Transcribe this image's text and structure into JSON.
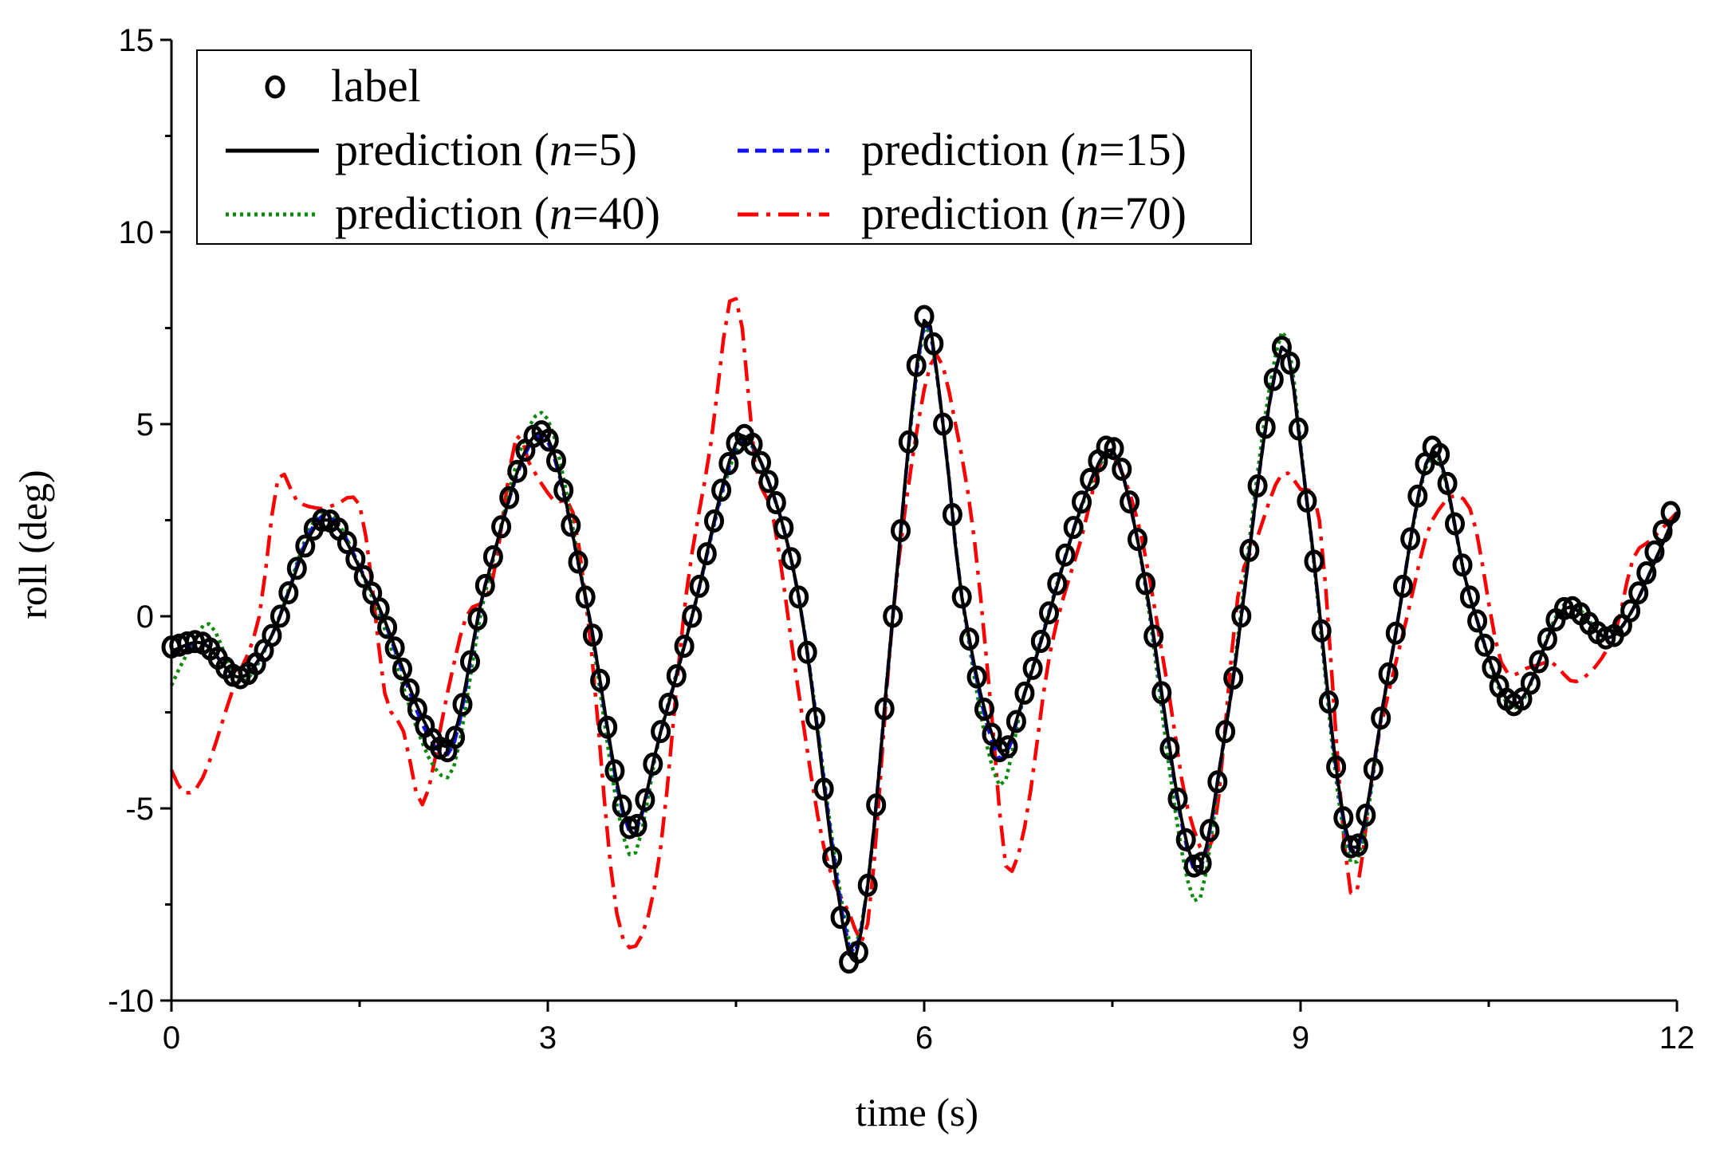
{
  "chart_data": {
    "type": "line",
    "title": "",
    "xlabel": "time (s)",
    "ylabel": "roll (deg)",
    "xlim": [
      0,
      12
    ],
    "ylim": [
      -10,
      15
    ],
    "xticks": [
      0,
      3,
      6,
      9,
      12
    ],
    "xtick_labels": [
      "0",
      "3",
      "6",
      "9",
      "12"
    ],
    "yticks": [
      -10,
      -5,
      0,
      5,
      10,
      15
    ],
    "ytick_labels": [
      "-10",
      "-5",
      "0",
      "5",
      "10",
      "15"
    ],
    "grid": false,
    "legend": {
      "placement": "top-left",
      "entries": [
        {
          "pre": "label",
          "italic": "",
          "post": "",
          "series": "label"
        },
        {
          "pre": "prediction (",
          "italic": "n",
          "post": "=5)",
          "series": "n5"
        },
        {
          "pre": "prediction (",
          "italic": "n",
          "post": "=15)",
          "series": "n15"
        },
        {
          "pre": "prediction (",
          "italic": "n",
          "post": "=40)",
          "series": "n40"
        },
        {
          "pre": "prediction (",
          "italic": "n",
          "post": "=70)",
          "series": "n70"
        }
      ]
    },
    "series": [
      {
        "id": "label",
        "name": "label",
        "kind": "marker",
        "marker": "circle-open",
        "color": "#000000",
        "keypoints": [
          [
            0.0,
            -0.8
          ],
          [
            0.25,
            -0.7
          ],
          [
            0.55,
            -1.6
          ],
          [
            0.8,
            -0.5
          ],
          [
            1.2,
            2.5
          ],
          [
            1.6,
            0.6
          ],
          [
            2.2,
            -3.5
          ],
          [
            2.5,
            0.8
          ],
          [
            2.95,
            4.8
          ],
          [
            3.3,
            0.5
          ],
          [
            3.65,
            -5.5
          ],
          [
            3.9,
            -3.0
          ],
          [
            4.15,
            0.0
          ],
          [
            4.5,
            4.5
          ],
          [
            4.7,
            4.0
          ],
          [
            5.0,
            0.5
          ],
          [
            5.4,
            -9.0
          ],
          [
            5.55,
            -7.0
          ],
          [
            5.75,
            0.0
          ],
          [
            6.0,
            7.8
          ],
          [
            6.15,
            5.0
          ],
          [
            6.3,
            0.5
          ],
          [
            6.6,
            -3.5
          ],
          [
            6.8,
            -2.0
          ],
          [
            7.45,
            4.4
          ],
          [
            7.7,
            2.0
          ],
          [
            8.15,
            -6.5
          ],
          [
            8.4,
            -3.0
          ],
          [
            8.85,
            7.0
          ],
          [
            9.05,
            3.0
          ],
          [
            9.4,
            -6.0
          ],
          [
            9.7,
            -1.5
          ],
          [
            10.05,
            4.4
          ],
          [
            10.35,
            0.5
          ],
          [
            10.7,
            -2.3
          ],
          [
            11.1,
            0.2
          ],
          [
            11.5,
            -0.5
          ],
          [
            11.95,
            2.7
          ]
        ]
      },
      {
        "id": "n5",
        "name": "prediction (n=5)",
        "kind": "line",
        "dash": "solid",
        "color": "#000000",
        "keypoints": [
          [
            0.0,
            -0.9
          ],
          [
            0.25,
            -0.7
          ],
          [
            0.55,
            -1.6
          ],
          [
            0.8,
            -0.5
          ],
          [
            1.2,
            2.5
          ],
          [
            1.6,
            0.6
          ],
          [
            2.2,
            -3.4
          ],
          [
            2.5,
            0.8
          ],
          [
            2.95,
            4.8
          ],
          [
            3.3,
            0.5
          ],
          [
            3.65,
            -5.5
          ],
          [
            3.9,
            -3.0
          ],
          [
            4.15,
            0.0
          ],
          [
            4.5,
            4.5
          ],
          [
            4.7,
            4.0
          ],
          [
            5.0,
            0.5
          ],
          [
            5.4,
            -8.8
          ],
          [
            5.55,
            -7.0
          ],
          [
            5.75,
            0.0
          ],
          [
            6.0,
            7.7
          ],
          [
            6.15,
            5.0
          ],
          [
            6.3,
            0.5
          ],
          [
            6.6,
            -3.5
          ],
          [
            6.8,
            -2.0
          ],
          [
            7.45,
            4.3
          ],
          [
            7.7,
            2.0
          ],
          [
            8.15,
            -6.5
          ],
          [
            8.4,
            -3.0
          ],
          [
            8.85,
            7.0
          ],
          [
            9.05,
            3.0
          ],
          [
            9.4,
            -6.0
          ],
          [
            9.7,
            -1.5
          ],
          [
            10.05,
            4.3
          ],
          [
            10.35,
            0.5
          ],
          [
            10.7,
            -2.3
          ],
          [
            11.1,
            0.2
          ],
          [
            11.5,
            -0.5
          ],
          [
            12.0,
            2.7
          ]
        ]
      },
      {
        "id": "n15",
        "name": "prediction (n=15)",
        "kind": "line",
        "dash": "dashed",
        "color": "#1010ff",
        "keypoints": [
          [
            0.0,
            -1.0
          ],
          [
            0.25,
            -0.7
          ],
          [
            0.55,
            -1.6
          ],
          [
            0.8,
            -0.5
          ],
          [
            1.2,
            2.6
          ],
          [
            1.6,
            0.6
          ],
          [
            2.2,
            -3.6
          ],
          [
            2.5,
            0.8
          ],
          [
            2.95,
            4.7
          ],
          [
            3.3,
            0.5
          ],
          [
            3.65,
            -5.6
          ],
          [
            3.9,
            -3.0
          ],
          [
            4.15,
            0.0
          ],
          [
            4.5,
            4.4
          ],
          [
            4.7,
            4.0
          ],
          [
            5.0,
            0.5
          ],
          [
            5.4,
            -8.6
          ],
          [
            5.55,
            -7.0
          ],
          [
            5.75,
            0.0
          ],
          [
            6.0,
            7.6
          ],
          [
            6.15,
            5.0
          ],
          [
            6.3,
            0.5
          ],
          [
            6.6,
            -3.7
          ],
          [
            6.8,
            -2.0
          ],
          [
            7.45,
            4.3
          ],
          [
            7.7,
            2.0
          ],
          [
            8.15,
            -6.6
          ],
          [
            8.4,
            -3.0
          ],
          [
            8.85,
            7.0
          ],
          [
            9.05,
            3.0
          ],
          [
            9.4,
            -6.1
          ],
          [
            9.7,
            -1.5
          ],
          [
            10.05,
            4.3
          ],
          [
            10.35,
            0.5
          ],
          [
            10.7,
            -2.3
          ],
          [
            11.1,
            0.2
          ],
          [
            11.5,
            -0.5
          ],
          [
            12.0,
            2.7
          ]
        ]
      },
      {
        "id": "n40",
        "name": "prediction (n=40)",
        "kind": "line",
        "dash": "dotted",
        "color": "#0a8a0a",
        "keypoints": [
          [
            0.0,
            -1.8
          ],
          [
            0.12,
            -1.0
          ],
          [
            0.3,
            -0.2
          ],
          [
            0.55,
            -1.7
          ],
          [
            0.8,
            -0.5
          ],
          [
            1.2,
            2.7
          ],
          [
            1.6,
            0.5
          ],
          [
            2.2,
            -4.2
          ],
          [
            2.5,
            0.6
          ],
          [
            2.95,
            5.3
          ],
          [
            3.3,
            0.5
          ],
          [
            3.65,
            -6.2
          ],
          [
            3.9,
            -3.0
          ],
          [
            4.15,
            0.0
          ],
          [
            4.5,
            4.3
          ],
          [
            4.7,
            4.0
          ],
          [
            5.0,
            0.5
          ],
          [
            5.4,
            -8.4
          ],
          [
            5.55,
            -7.0
          ],
          [
            5.75,
            0.0
          ],
          [
            6.0,
            7.5
          ],
          [
            6.15,
            5.0
          ],
          [
            6.3,
            0.5
          ],
          [
            6.6,
            -4.4
          ],
          [
            6.8,
            -2.0
          ],
          [
            7.45,
            4.2
          ],
          [
            7.7,
            2.0
          ],
          [
            8.15,
            -7.4
          ],
          [
            8.4,
            -3.0
          ],
          [
            8.85,
            7.4
          ],
          [
            9.05,
            3.0
          ],
          [
            9.4,
            -6.4
          ],
          [
            9.7,
            -1.5
          ],
          [
            10.05,
            4.2
          ],
          [
            10.35,
            0.5
          ],
          [
            10.7,
            -2.4
          ],
          [
            11.1,
            0.3
          ],
          [
            11.5,
            -0.5
          ],
          [
            12.0,
            2.7
          ]
        ]
      },
      {
        "id": "n70",
        "name": "prediction (n=70)",
        "kind": "line",
        "dash": "dash-dot",
        "color": "#ff0000",
        "keypoints": [
          [
            0.0,
            -4.0
          ],
          [
            0.1,
            -4.6
          ],
          [
            0.25,
            -4.2
          ],
          [
            0.5,
            -1.8
          ],
          [
            0.7,
            0.0
          ],
          [
            0.85,
            3.6
          ],
          [
            1.0,
            3.0
          ],
          [
            1.2,
            2.8
          ],
          [
            1.3,
            2.9
          ],
          [
            1.5,
            2.9
          ],
          [
            1.6,
            0.8
          ],
          [
            1.7,
            -2.0
          ],
          [
            1.85,
            -3.0
          ],
          [
            2.0,
            -4.9
          ],
          [
            2.2,
            -2.0
          ],
          [
            2.35,
            0.0
          ],
          [
            2.55,
            0.8
          ],
          [
            2.75,
            4.7
          ],
          [
            2.85,
            4.0
          ],
          [
            3.05,
            3.0
          ],
          [
            3.2,
            2.7
          ],
          [
            3.35,
            -1.0
          ],
          [
            3.5,
            -6.5
          ],
          [
            3.6,
            -8.4
          ],
          [
            3.75,
            -8.3
          ],
          [
            3.9,
            -6.0
          ],
          [
            4.1,
            0.5
          ],
          [
            4.3,
            4.5
          ],
          [
            4.45,
            8.2
          ],
          [
            4.55,
            7.5
          ],
          [
            4.65,
            4.0
          ],
          [
            4.8,
            2.5
          ],
          [
            5.0,
            -2.0
          ],
          [
            5.2,
            -6.0
          ],
          [
            5.4,
            -7.7
          ],
          [
            5.55,
            -8.0
          ],
          [
            5.75,
            0.0
          ],
          [
            5.95,
            5.0
          ],
          [
            6.1,
            6.8
          ],
          [
            6.25,
            5.0
          ],
          [
            6.4,
            2.0
          ],
          [
            6.55,
            -3.0
          ],
          [
            6.65,
            -6.5
          ],
          [
            6.8,
            -5.5
          ],
          [
            7.0,
            -1.0
          ],
          [
            7.25,
            2.0
          ],
          [
            7.45,
            4.2
          ],
          [
            7.7,
            2.5
          ],
          [
            7.95,
            -2.0
          ],
          [
            8.1,
            -5.0
          ],
          [
            8.3,
            -5.8
          ],
          [
            8.5,
            0.5
          ],
          [
            8.65,
            2.0
          ],
          [
            8.85,
            3.7
          ],
          [
            9.0,
            3.3
          ],
          [
            9.15,
            2.5
          ],
          [
            9.4,
            -7.2
          ],
          [
            9.6,
            -3.5
          ],
          [
            9.85,
            0.0
          ],
          [
            10.05,
            2.5
          ],
          [
            10.35,
            2.8
          ],
          [
            10.6,
            -1.2
          ],
          [
            10.85,
            -1.3
          ],
          [
            11.0,
            -1.2
          ],
          [
            11.2,
            -1.7
          ],
          [
            11.5,
            -0.5
          ],
          [
            11.65,
            1.5
          ],
          [
            11.8,
            2.0
          ],
          [
            12.0,
            2.7
          ]
        ]
      }
    ]
  }
}
